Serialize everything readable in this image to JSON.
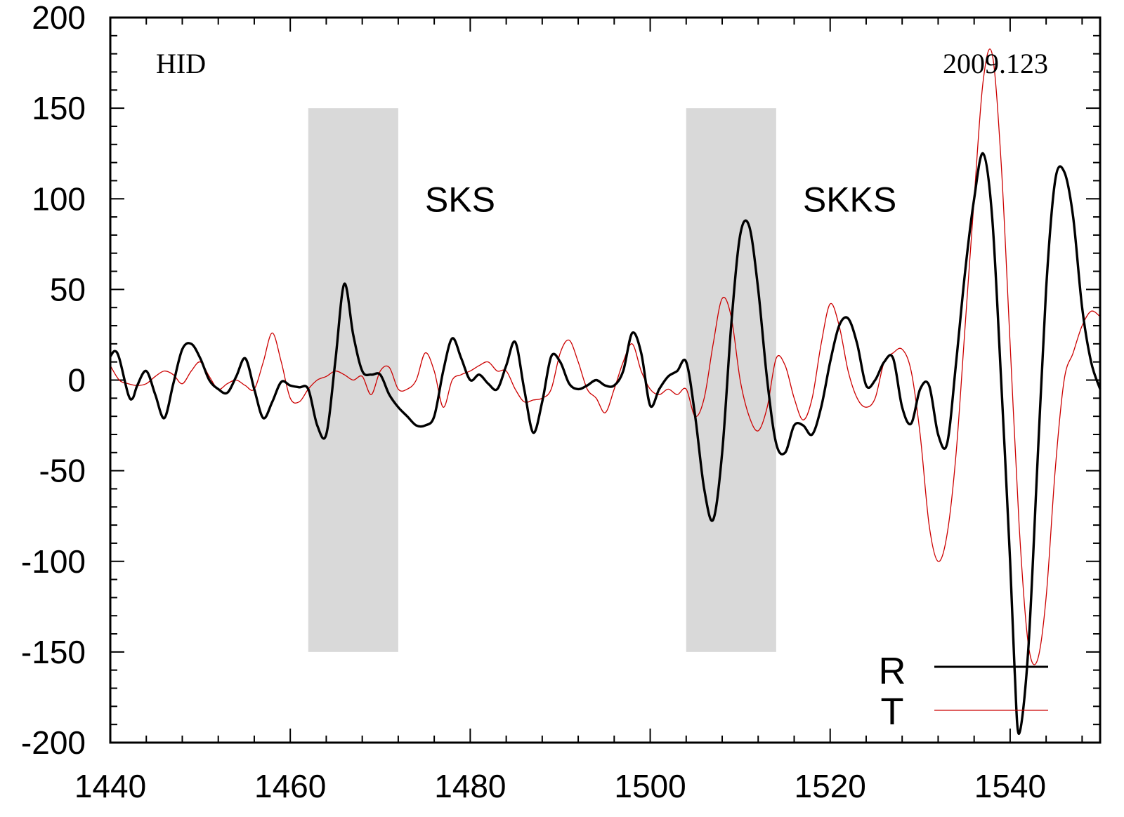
{
  "chart_data": {
    "type": "line",
    "title": "",
    "xlabel": "",
    "ylabel": "",
    "xlim": [
      1440,
      1550
    ],
    "ylim": [
      -200,
      200
    ],
    "x_ticks": [
      1440,
      1460,
      1480,
      1500,
      1520,
      1540
    ],
    "y_ticks": [
      200,
      150,
      100,
      50,
      0,
      -50,
      -100,
      -150,
      -200
    ],
    "grid": false,
    "legend_position": "bottom-right",
    "annotations": {
      "station": "HID",
      "event": "2009.123"
    },
    "windows": [
      {
        "label": "SKS",
        "x_start": 1462,
        "x_end": 1472,
        "y_min": -150,
        "y_max": 150
      },
      {
        "label": "SKKS",
        "x_start": 1504,
        "x_end": 1514,
        "y_min": -150,
        "y_max": 150
      }
    ],
    "series": [
      {
        "name": "R",
        "color": "#000000",
        "points": [
          [
            1440,
            13
          ],
          [
            1440.5,
            16
          ],
          [
            1441,
            12
          ],
          [
            1442,
            -8
          ],
          [
            1442.5,
            -10
          ],
          [
            1443,
            -3
          ],
          [
            1444,
            5
          ],
          [
            1445,
            -8
          ],
          [
            1446,
            -21
          ],
          [
            1447,
            -2
          ],
          [
            1448,
            17
          ],
          [
            1449,
            20
          ],
          [
            1450,
            12
          ],
          [
            1451,
            0
          ],
          [
            1452,
            -5
          ],
          [
            1453,
            -7
          ],
          [
            1454,
            2
          ],
          [
            1455,
            12
          ],
          [
            1456,
            -5
          ],
          [
            1457,
            -21
          ],
          [
            1458,
            -12
          ],
          [
            1459,
            -1
          ],
          [
            1460,
            -3
          ],
          [
            1461,
            -4
          ],
          [
            1462,
            -5
          ],
          [
            1463,
            -25
          ],
          [
            1464,
            -30
          ],
          [
            1465,
            10
          ],
          [
            1466,
            53
          ],
          [
            1467,
            25
          ],
          [
            1468,
            5
          ],
          [
            1469,
            3
          ],
          [
            1470,
            3
          ],
          [
            1471,
            -8
          ],
          [
            1472,
            -15
          ],
          [
            1473,
            -20
          ],
          [
            1474,
            -25
          ],
          [
            1475,
            -25
          ],
          [
            1476,
            -20
          ],
          [
            1477,
            5
          ],
          [
            1478,
            23
          ],
          [
            1479,
            12
          ],
          [
            1480,
            0
          ],
          [
            1481,
            3
          ],
          [
            1482,
            -2
          ],
          [
            1483,
            -5
          ],
          [
            1484,
            8
          ],
          [
            1485,
            21
          ],
          [
            1486,
            -5
          ],
          [
            1487,
            -29
          ],
          [
            1488,
            -12
          ],
          [
            1489,
            13
          ],
          [
            1490,
            10
          ],
          [
            1491,
            -2
          ],
          [
            1492,
            -5
          ],
          [
            1493,
            -3
          ],
          [
            1494,
            0
          ],
          [
            1495,
            -3
          ],
          [
            1496,
            -3
          ],
          [
            1497,
            5
          ],
          [
            1498,
            26
          ],
          [
            1499,
            15
          ],
          [
            1500,
            -14
          ],
          [
            1501,
            -5
          ],
          [
            1502,
            2
          ],
          [
            1503,
            5
          ],
          [
            1504,
            10
          ],
          [
            1505,
            -20
          ],
          [
            1506,
            -60
          ],
          [
            1507,
            -77
          ],
          [
            1508,
            -40
          ],
          [
            1509,
            30
          ],
          [
            1510,
            80
          ],
          [
            1511,
            85
          ],
          [
            1512,
            50
          ],
          [
            1513,
            0
          ],
          [
            1514,
            -35
          ],
          [
            1515,
            -40
          ],
          [
            1516,
            -25
          ],
          [
            1517,
            -25
          ],
          [
            1518,
            -30
          ],
          [
            1519,
            -15
          ],
          [
            1520,
            10
          ],
          [
            1521,
            30
          ],
          [
            1522,
            34
          ],
          [
            1523,
            20
          ],
          [
            1524,
            -3
          ],
          [
            1525,
            0
          ],
          [
            1526,
            10
          ],
          [
            1527,
            12
          ],
          [
            1528,
            -15
          ],
          [
            1529,
            -24
          ],
          [
            1530,
            -5
          ],
          [
            1531,
            -3
          ],
          [
            1532,
            -30
          ],
          [
            1533,
            -35
          ],
          [
            1534,
            10
          ],
          [
            1535,
            60
          ],
          [
            1536,
            100
          ],
          [
            1537,
            125
          ],
          [
            1538,
            90
          ],
          [
            1539,
            0
          ],
          [
            1540,
            -100
          ],
          [
            1540.5,
            -160
          ],
          [
            1541,
            -195
          ],
          [
            1542,
            -150
          ],
          [
            1543,
            -50
          ],
          [
            1544,
            50
          ],
          [
            1545,
            110
          ],
          [
            1546,
            115
          ],
          [
            1547,
            90
          ],
          [
            1548,
            40
          ],
          [
            1549,
            10
          ],
          [
            1550,
            -5
          ]
        ]
      },
      {
        "name": "T",
        "color": "#cc0000",
        "points": [
          [
            1440,
            8
          ],
          [
            1441,
            0
          ],
          [
            1442,
            -2
          ],
          [
            1443,
            -3
          ],
          [
            1444,
            -2
          ],
          [
            1445,
            2
          ],
          [
            1446,
            5
          ],
          [
            1447,
            3
          ],
          [
            1448,
            -2
          ],
          [
            1449,
            5
          ],
          [
            1450,
            10
          ],
          [
            1451,
            2
          ],
          [
            1452,
            -5
          ],
          [
            1453,
            -2
          ],
          [
            1454,
            0
          ],
          [
            1455,
            -3
          ],
          [
            1456,
            -5
          ],
          [
            1457,
            10
          ],
          [
            1458,
            26
          ],
          [
            1459,
            10
          ],
          [
            1460,
            -10
          ],
          [
            1461,
            -12
          ],
          [
            1462,
            -5
          ],
          [
            1463,
            0
          ],
          [
            1464,
            2
          ],
          [
            1465,
            5
          ],
          [
            1466,
            3
          ],
          [
            1467,
            0
          ],
          [
            1468,
            2
          ],
          [
            1469,
            -8
          ],
          [
            1470,
            5
          ],
          [
            1471,
            7
          ],
          [
            1472,
            -5
          ],
          [
            1473,
            -5
          ],
          [
            1474,
            0
          ],
          [
            1475,
            15
          ],
          [
            1476,
            5
          ],
          [
            1477,
            -15
          ],
          [
            1478,
            0
          ],
          [
            1479,
            3
          ],
          [
            1480,
            5
          ],
          [
            1481,
            8
          ],
          [
            1482,
            10
          ],
          [
            1483,
            5
          ],
          [
            1484,
            5
          ],
          [
            1485,
            -5
          ],
          [
            1486,
            -12
          ],
          [
            1487,
            -11
          ],
          [
            1488,
            -10
          ],
          [
            1489,
            -5
          ],
          [
            1490,
            15
          ],
          [
            1491,
            22
          ],
          [
            1492,
            10
          ],
          [
            1493,
            -5
          ],
          [
            1494,
            -10
          ],
          [
            1495,
            -18
          ],
          [
            1496,
            -5
          ],
          [
            1497,
            10
          ],
          [
            1498,
            20
          ],
          [
            1499,
            5
          ],
          [
            1500,
            -5
          ],
          [
            1501,
            -8
          ],
          [
            1502,
            -5
          ],
          [
            1503,
            -8
          ],
          [
            1504,
            -5
          ],
          [
            1505,
            -20
          ],
          [
            1506,
            -10
          ],
          [
            1507,
            20
          ],
          [
            1508,
            45
          ],
          [
            1509,
            35
          ],
          [
            1510,
            0
          ],
          [
            1511,
            -20
          ],
          [
            1512,
            -28
          ],
          [
            1513,
            -15
          ],
          [
            1514,
            12
          ],
          [
            1515,
            8
          ],
          [
            1516,
            -10
          ],
          [
            1517,
            -22
          ],
          [
            1518,
            -10
          ],
          [
            1519,
            20
          ],
          [
            1520,
            42
          ],
          [
            1521,
            30
          ],
          [
            1522,
            5
          ],
          [
            1523,
            -10
          ],
          [
            1524,
            -15
          ],
          [
            1525,
            -10
          ],
          [
            1526,
            10
          ],
          [
            1527,
            15
          ],
          [
            1528,
            17
          ],
          [
            1529,
            5
          ],
          [
            1530,
            -30
          ],
          [
            1531,
            -80
          ],
          [
            1532,
            -100
          ],
          [
            1533,
            -85
          ],
          [
            1534,
            -40
          ],
          [
            1535,
            30
          ],
          [
            1536,
            100
          ],
          [
            1537,
            165
          ],
          [
            1538,
            180
          ],
          [
            1539,
            120
          ],
          [
            1540,
            20
          ],
          [
            1541,
            -80
          ],
          [
            1542,
            -145
          ],
          [
            1543,
            -155
          ],
          [
            1544,
            -120
          ],
          [
            1545,
            -50
          ],
          [
            1546,
            0
          ],
          [
            1547,
            15
          ],
          [
            1548,
            30
          ],
          [
            1549,
            38
          ],
          [
            1550,
            35
          ]
        ]
      }
    ]
  }
}
